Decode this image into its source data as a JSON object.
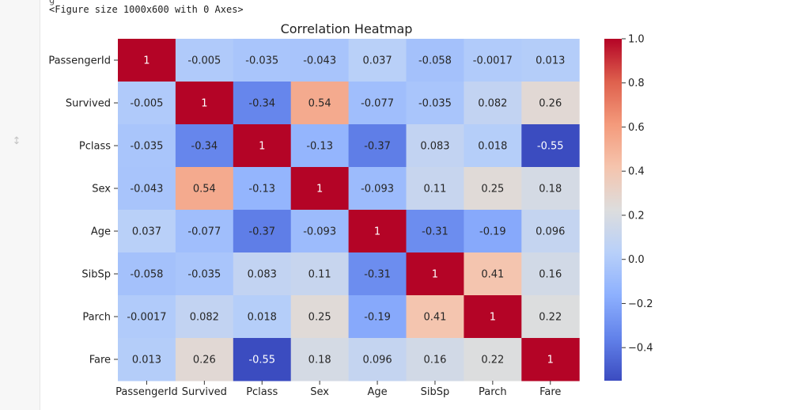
{
  "output": {
    "top_fragment": "g",
    "figure_text": "<Figure size 1000x600 with 0 Axes>"
  },
  "colors": {
    "gutter_bg": "#f7f7f7",
    "cmap_low": "#3b4cc0",
    "cmap_mid": "#dddddd",
    "cmap_high": "#b40426"
  },
  "chart_data": {
    "type": "heatmap",
    "title": "Correlation Heatmap",
    "colormap": "coolwarm",
    "x_labels": [
      "PassengerId",
      "Survived",
      "Pclass",
      "Sex",
      "Age",
      "SibSp",
      "Parch",
      "Fare"
    ],
    "y_labels": [
      "PassengerId",
      "Survived",
      "Pclass",
      "Sex",
      "Age",
      "SibSp",
      "Parch",
      "Fare"
    ],
    "values": [
      [
        1,
        -0.005,
        -0.035,
        -0.043,
        0.037,
        -0.058,
        -0.0017,
        0.013
      ],
      [
        -0.005,
        1,
        -0.34,
        0.54,
        -0.077,
        -0.035,
        0.082,
        0.26
      ],
      [
        -0.035,
        -0.34,
        1,
        -0.13,
        -0.37,
        0.083,
        0.018,
        -0.55
      ],
      [
        -0.043,
        0.54,
        -0.13,
        1,
        -0.093,
        0.11,
        0.25,
        0.18
      ],
      [
        0.037,
        -0.077,
        -0.37,
        -0.093,
        1,
        -0.31,
        -0.19,
        0.096
      ],
      [
        -0.058,
        -0.035,
        0.083,
        0.11,
        -0.31,
        1,
        0.41,
        0.16
      ],
      [
        -0.0017,
        0.082,
        0.018,
        0.25,
        -0.19,
        0.41,
        1,
        0.22
      ],
      [
        0.013,
        0.26,
        -0.55,
        0.18,
        0.096,
        0.16,
        0.22,
        1
      ]
    ],
    "annotations": [
      [
        "1",
        "-0.005",
        "-0.035",
        "-0.043",
        "0.037",
        "-0.058",
        "-0.0017",
        "0.013"
      ],
      [
        "-0.005",
        "1",
        "-0.34",
        "0.54",
        "-0.077",
        "-0.035",
        "0.082",
        "0.26"
      ],
      [
        "-0.035",
        "-0.34",
        "1",
        "-0.13",
        "-0.37",
        "0.083",
        "0.018",
        "-0.55"
      ],
      [
        "-0.043",
        "0.54",
        "-0.13",
        "1",
        "-0.093",
        "0.11",
        "0.25",
        "0.18"
      ],
      [
        "0.037",
        "-0.077",
        "-0.37",
        "-0.093",
        "1",
        "-0.31",
        "-0.19",
        "0.096"
      ],
      [
        "-0.058",
        "-0.035",
        "0.083",
        "0.11",
        "-0.31",
        "1",
        "0.41",
        "0.16"
      ],
      [
        "-0.0017",
        "0.082",
        "0.018",
        "0.25",
        "-0.19",
        "0.41",
        "1",
        "0.22"
      ],
      [
        "0.013",
        "0.26",
        "-0.55",
        "0.18",
        "0.096",
        "0.16",
        "0.22",
        "1"
      ]
    ],
    "colorbar": {
      "vmin": -0.55,
      "vmax": 1.0,
      "ticks": [
        1.0,
        0.8,
        0.6,
        0.4,
        0.2,
        0.0,
        -0.2,
        -0.4
      ],
      "tick_labels": [
        "1.0",
        "0.8",
        "0.6",
        "0.4",
        "0.2",
        "0.0",
        "−0.2",
        "−0.4"
      ]
    }
  }
}
